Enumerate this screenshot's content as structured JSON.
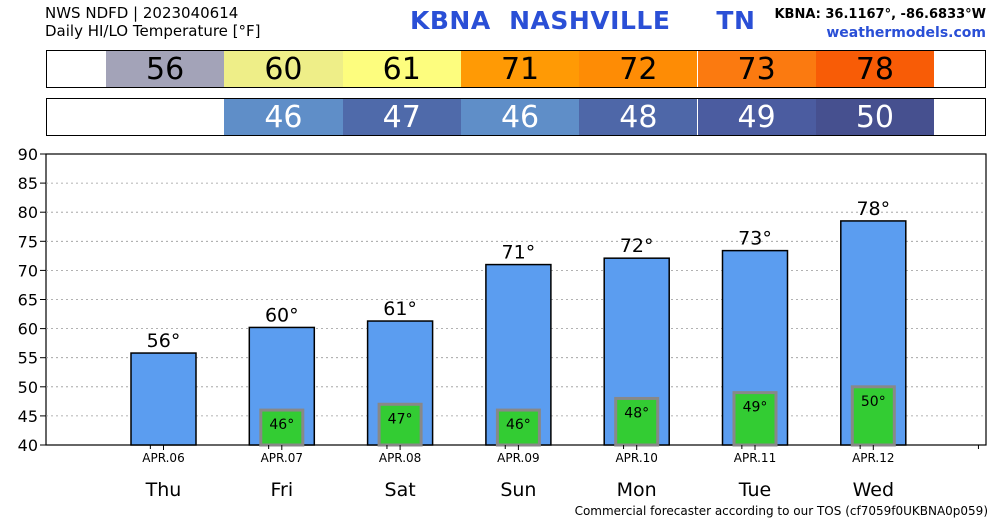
{
  "header": {
    "source_line": "NWS NDFD | 2023040614",
    "subtitle": "Daily HI/LO Temperature [°F]",
    "station_title": "KBNA  NASHVILLE     TN",
    "coords": "KBNA: 36.1167°, -86.6833°W",
    "site": "weathermodels.com"
  },
  "hi_strip": [
    {
      "label": "56",
      "color": "#a3a3b8"
    },
    {
      "label": "60",
      "color": "#eeee88"
    },
    {
      "label": "61",
      "color": "#fdfd7e"
    },
    {
      "label": "71",
      "color": "#ff9a05"
    },
    {
      "label": "72",
      "color": "#fe8c05"
    },
    {
      "label": "73",
      "color": "#fb7a10"
    },
    {
      "label": "78",
      "color": "#f85c06"
    }
  ],
  "lo_strip": [
    {
      "label": "46",
      "color": "#5f8ec8"
    },
    {
      "label": "47",
      "color": "#4f6aaa"
    },
    {
      "label": "46",
      "color": "#5f8ec8"
    },
    {
      "label": "48",
      "color": "#4e67a8"
    },
    {
      "label": "49",
      "color": "#4b5ca0"
    },
    {
      "label": "50",
      "color": "#46508f"
    }
  ],
  "chart_data": {
    "type": "bar",
    "categories": [
      "APR.06",
      "APR.07",
      "APR.08",
      "APR.09",
      "APR.10",
      "APR.11",
      "APR.12"
    ],
    "days": [
      "Thu",
      "Fri",
      "Sat",
      "Sun",
      "Mon",
      "Tue",
      "Wed"
    ],
    "series": [
      {
        "values": [
          55.8,
          60.2,
          61.3,
          71,
          72.1,
          73.4,
          78.5
        ],
        "color": "#5b9df0"
      },
      {
        "values": [
          null,
          46,
          47,
          46,
          48,
          49,
          50
        ],
        "color": "#33cc33"
      }
    ],
    "hi_labels": [
      "56°",
      "60°",
      "61°",
      "71°",
      "72°",
      "73°",
      "78°"
    ],
    "lo_labels": [
      "",
      "46°",
      "47°",
      "46°",
      "48°",
      "49°",
      "50°"
    ],
    "ylim": [
      40,
      90
    ],
    "yticks": [
      "40",
      "45",
      "50",
      "55",
      "60",
      "65",
      "70",
      "75",
      "80",
      "85",
      "90"
    ],
    "grid": true
  },
  "footer": "Commercial forecaster according to our TOS (cf7059f0UKBNA0p059)"
}
